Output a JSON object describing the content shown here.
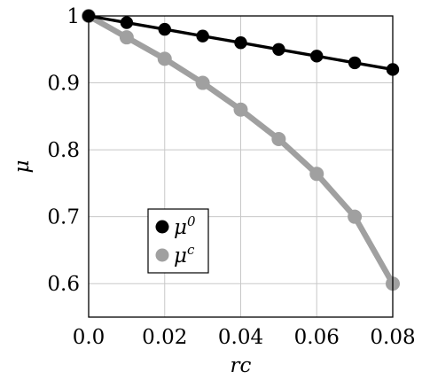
{
  "chart_data": {
    "type": "line",
    "x": [
      0.0,
      0.01,
      0.02,
      0.03,
      0.04,
      0.05,
      0.06,
      0.07,
      0.08
    ],
    "series": [
      {
        "name": "μ",
        "sup": "0",
        "color": "#000000",
        "values": [
          1.0,
          0.99,
          0.98,
          0.97,
          0.96,
          0.95,
          0.94,
          0.93,
          0.92
        ]
      },
      {
        "name": "μ",
        "sup": "c",
        "color": "#a0a0a0",
        "values": [
          1.0,
          0.968,
          0.936,
          0.9,
          0.86,
          0.816,
          0.764,
          0.7,
          0.6
        ]
      }
    ],
    "xlabel": "rc",
    "ylabel": "μ",
    "xlim": [
      0.0,
      0.08
    ],
    "ylim": [
      0.55,
      1.0
    ],
    "xticks": [
      0.0,
      0.02,
      0.04,
      0.06,
      0.08
    ],
    "xtick_labels": [
      "0.0",
      "0.02",
      "0.04",
      "0.06",
      "0.08"
    ],
    "yticks": [
      0.6,
      0.7,
      0.8,
      0.9,
      1.0
    ],
    "ytick_labels": [
      "0.6",
      "0.7",
      "0.8",
      "0.9",
      "1"
    ],
    "grid": true,
    "legend_position": "lower-left"
  }
}
